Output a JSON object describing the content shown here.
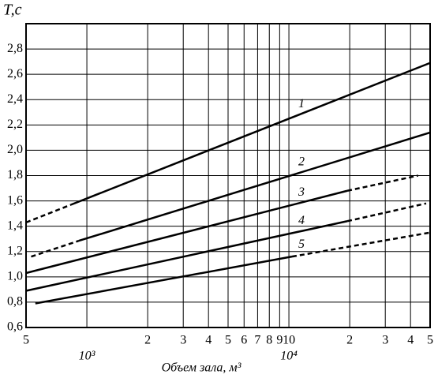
{
  "chart_data": {
    "type": "line",
    "y_label": "T,c",
    "x_label": "Объем зала, м³",
    "log_x": true,
    "grid": true,
    "xlim": [
      500,
      50000
    ],
    "ylim": [
      0.6,
      3.0
    ],
    "xticks": [
      {
        "value": 500,
        "label": "5"
      },
      {
        "value": 1000,
        "label": null
      },
      {
        "value": 2000,
        "label": "2"
      },
      {
        "value": 3000,
        "label": "3"
      },
      {
        "value": 4000,
        "label": "4"
      },
      {
        "value": 5000,
        "label": "5"
      },
      {
        "value": 6000,
        "label": "6"
      },
      {
        "value": 7000,
        "label": "7"
      },
      {
        "value": 8000,
        "label": "8"
      },
      {
        "value": 9000,
        "label": "9"
      },
      {
        "value": 10000,
        "label": "10"
      },
      {
        "value": 20000,
        "label": "2"
      },
      {
        "value": 30000,
        "label": "3"
      },
      {
        "value": 40000,
        "label": "4"
      },
      {
        "value": 50000,
        "label": "5"
      }
    ],
    "xticks_secondary": [
      {
        "value": 1000,
        "label": "10³"
      },
      {
        "value": 10000,
        "label": "10⁴"
      }
    ],
    "yticks": [
      {
        "value": 0.6,
        "label": "0,6"
      },
      {
        "value": 0.8,
        "label": "0,8"
      },
      {
        "value": 1.0,
        "label": "1,0"
      },
      {
        "value": 1.2,
        "label": "1,2"
      },
      {
        "value": 1.4,
        "label": "1,4"
      },
      {
        "value": 1.6,
        "label": "1,6"
      },
      {
        "value": 1.8,
        "label": "1,8"
      },
      {
        "value": 2.0,
        "label": "2,0"
      },
      {
        "value": 2.2,
        "label": "2,2"
      },
      {
        "value": 2.4,
        "label": "2,4"
      },
      {
        "value": 2.6,
        "label": "2,6"
      },
      {
        "value": 2.8,
        "label": "2,8"
      }
    ],
    "series": [
      {
        "name": "1",
        "color": "#000000",
        "x": [
          500,
          835,
          50000
        ],
        "values": [
          1.43,
          1.57,
          2.69
        ],
        "styles": [
          "dashed",
          "solid"
        ]
      },
      {
        "name": "2",
        "color": "#000000",
        "x": [
          530,
          913,
          50000
        ],
        "values": [
          1.16,
          1.285,
          2.14
        ],
        "styles": [
          "dashed",
          "solid"
        ]
      },
      {
        "name": "3",
        "color": "#000000",
        "x": [
          500,
          19450,
          43600
        ],
        "values": [
          1.03,
          1.68,
          1.8
        ],
        "styles": [
          "solid",
          "dashed"
        ]
      },
      {
        "name": "4",
        "color": "#000000",
        "x": [
          500,
          19450,
          47800
        ],
        "values": [
          0.89,
          1.44,
          1.58
        ],
        "styles": [
          "solid",
          "dashed"
        ]
      },
      {
        "name": "5",
        "color": "#000000",
        "x": [
          556,
          10360,
          50000
        ],
        "values": [
          0.79,
          1.16,
          1.35
        ],
        "styles": [
          "solid",
          "dashed"
        ]
      }
    ]
  }
}
